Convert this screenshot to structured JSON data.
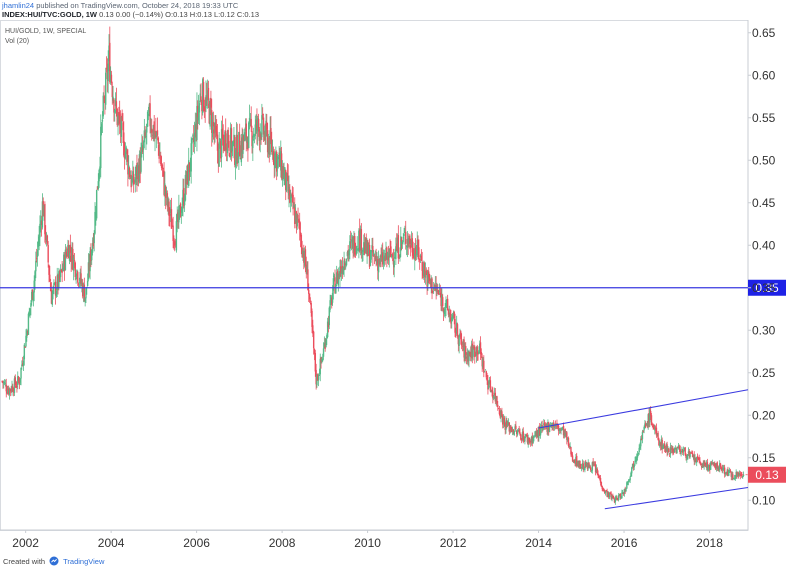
{
  "header": {
    "author": "jhamlin24",
    "published_text": "published on TradingView.com, October 24, 2018 19:33 UTC",
    "symbol": "INDEX:HUI/TVC:GOLD, 1W",
    "ohlc_text": "0.13 0.00 (−0.14%) O:0.13 H:0.13 L:0.12 C:0.13"
  },
  "chart_labels": {
    "series_label": "HUI/GOLD, 1W, SPECIAL",
    "volume_label": "Vol (20)",
    "hline_value_label": "0.35",
    "last_price_label": "0.13"
  },
  "footer": {
    "created_with": "Created with",
    "brand": "TradingView",
    "logo_icon": "tradingview-logo-icon"
  },
  "colors": {
    "up": "#53b987",
    "down": "#eb4d5c",
    "line": "#3a3ae0",
    "axis_text": "#333333",
    "last_price_bg": "#eb4d5c",
    "hline_label_bg": "#1e22e6"
  },
  "chart_data": {
    "type": "candlestick",
    "title": "",
    "x_tick_labels": [
      "2002",
      "2004",
      "2006",
      "2008",
      "2010",
      "2012",
      "2014",
      "2016",
      "2018"
    ],
    "y_tick_labels": [
      "0.10",
      "0.15",
      "0.20",
      "0.25",
      "0.30",
      "0.35",
      "0.40",
      "0.45",
      "0.50",
      "0.55",
      "0.60",
      "0.65"
    ],
    "xlim": [
      2001.4,
      2018.9
    ],
    "ylim": [
      0.065,
      0.665
    ],
    "grid": false,
    "price_path_weekly_close_approx": [
      [
        2001.45,
        0.24
      ],
      [
        2001.6,
        0.23
      ],
      [
        2001.85,
        0.24
      ],
      [
        2002.0,
        0.29
      ],
      [
        2002.2,
        0.36
      ],
      [
        2002.4,
        0.45
      ],
      [
        2002.6,
        0.34
      ],
      [
        2002.8,
        0.36
      ],
      [
        2003.0,
        0.4
      ],
      [
        2003.2,
        0.37
      ],
      [
        2003.4,
        0.34
      ],
      [
        2003.6,
        0.42
      ],
      [
        2003.8,
        0.55
      ],
      [
        2003.95,
        0.62
      ],
      [
        2004.1,
        0.56
      ],
      [
        2004.3,
        0.52
      ],
      [
        2004.5,
        0.47
      ],
      [
        2004.7,
        0.5
      ],
      [
        2004.9,
        0.55
      ],
      [
        2005.1,
        0.52
      ],
      [
        2005.3,
        0.45
      ],
      [
        2005.5,
        0.41
      ],
      [
        2005.7,
        0.46
      ],
      [
        2005.9,
        0.51
      ],
      [
        2006.1,
        0.58
      ],
      [
        2006.3,
        0.56
      ],
      [
        2006.5,
        0.51
      ],
      [
        2006.7,
        0.53
      ],
      [
        2006.9,
        0.51
      ],
      [
        2007.2,
        0.53
      ],
      [
        2007.5,
        0.54
      ],
      [
        2007.8,
        0.51
      ],
      [
        2008.0,
        0.49
      ],
      [
        2008.2,
        0.45
      ],
      [
        2008.4,
        0.42
      ],
      [
        2008.6,
        0.36
      ],
      [
        2008.8,
        0.24
      ],
      [
        2008.95,
        0.27
      ],
      [
        2009.2,
        0.35
      ],
      [
        2009.5,
        0.39
      ],
      [
        2009.8,
        0.41
      ],
      [
        2010.0,
        0.39
      ],
      [
        2010.3,
        0.38
      ],
      [
        2010.6,
        0.39
      ],
      [
        2010.9,
        0.41
      ],
      [
        2011.2,
        0.39
      ],
      [
        2011.4,
        0.36
      ],
      [
        2011.7,
        0.34
      ],
      [
        2012.0,
        0.31
      ],
      [
        2012.3,
        0.27
      ],
      [
        2012.6,
        0.28
      ],
      [
        2012.8,
        0.24
      ],
      [
        2013.0,
        0.22
      ],
      [
        2013.2,
        0.19
      ],
      [
        2013.5,
        0.18
      ],
      [
        2013.8,
        0.17
      ],
      [
        2014.0,
        0.18
      ],
      [
        2014.3,
        0.19
      ],
      [
        2014.6,
        0.18
      ],
      [
        2014.8,
        0.15
      ],
      [
        2015.0,
        0.14
      ],
      [
        2015.3,
        0.14
      ],
      [
        2015.55,
        0.11
      ],
      [
        2015.8,
        0.1
      ],
      [
        2016.0,
        0.11
      ],
      [
        2016.2,
        0.14
      ],
      [
        2016.45,
        0.18
      ],
      [
        2016.6,
        0.2
      ],
      [
        2016.8,
        0.17
      ],
      [
        2017.0,
        0.16
      ],
      [
        2017.3,
        0.16
      ],
      [
        2017.6,
        0.15
      ],
      [
        2017.9,
        0.14
      ],
      [
        2018.2,
        0.14
      ],
      [
        2018.5,
        0.13
      ],
      [
        2018.8,
        0.13
      ]
    ],
    "horizontal_lines": [
      {
        "y": 0.35,
        "label": "0.35"
      }
    ],
    "trend_lines": [
      {
        "from": [
          2014.0,
          0.185
        ],
        "to": [
          2018.9,
          0.23
        ]
      },
      {
        "from": [
          2015.55,
          0.09
        ],
        "to": [
          2018.9,
          0.115
        ]
      }
    ],
    "last_price": 0.13
  }
}
